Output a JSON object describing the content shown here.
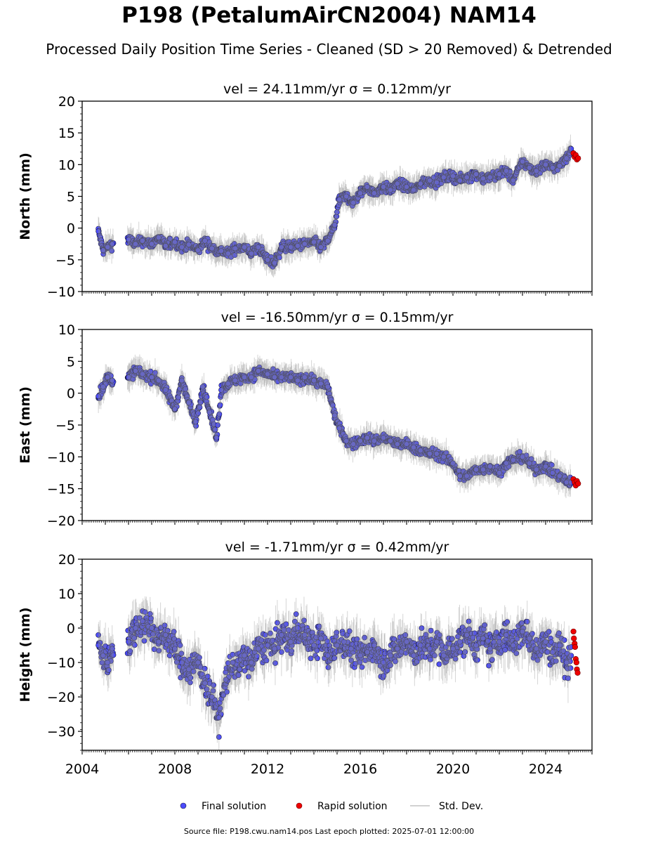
{
  "page": {
    "title": "P198 (PetalumAirCN2004) NAM14",
    "subtitle": "Processed Daily Position Time Series - Cleaned (SD > 20 Removed) & Detrended",
    "footer": "Source file: P198.cwu.nam14.pos  Last epoch plotted: 2025-07-01 12:00:00"
  },
  "colors": {
    "final": "#4b4bff",
    "rapid": "#ee0000",
    "stddev": "#888888",
    "edge": "#1a1a3a"
  },
  "legend": {
    "final_label": "Final solution",
    "rapid_label": "Rapid solution",
    "stddev_label": "Std. Dev."
  },
  "chart_data": [
    {
      "type": "scatter",
      "panel": "north",
      "title": "vel = 24.11mm/yr   σ = 0.12mm/yr",
      "ylabel": "North (mm)",
      "xlabel": "",
      "xlim": [
        2004.0,
        2026.0
      ],
      "ylim": [
        -10,
        20
      ],
      "yticks": [
        -10,
        -5,
        0,
        5,
        10,
        15,
        20
      ],
      "xticks": [],
      "grid": false,
      "series": [
        {
          "name": "Final solution",
          "x": [
            2004.7,
            2004.9,
            2005.1,
            2005.3,
            2006.0,
            2006.3,
            2006.6,
            2007.0,
            2007.3,
            2007.6,
            2008.0,
            2008.3,
            2008.6,
            2009.0,
            2009.3,
            2009.6,
            2010.0,
            2010.3,
            2010.6,
            2011.0,
            2011.3,
            2011.6,
            2012.0,
            2012.3,
            2012.6,
            2013.0,
            2013.3,
            2013.6,
            2014.0,
            2014.3,
            2014.6,
            2014.9,
            2015.1,
            2015.4,
            2015.7,
            2016.0,
            2016.3,
            2016.6,
            2017.0,
            2017.3,
            2017.6,
            2018.0,
            2018.3,
            2018.6,
            2019.0,
            2019.3,
            2019.6,
            2020.0,
            2020.3,
            2020.6,
            2021.0,
            2021.3,
            2021.6,
            2022.0,
            2022.3,
            2022.6,
            2023.0,
            2023.3,
            2023.6,
            2024.0,
            2024.3,
            2024.6,
            2024.9,
            2025.1
          ],
          "values": [
            -0.5,
            -3.5,
            -3.0,
            -2.5,
            -1.8,
            -2.5,
            -2.0,
            -2.5,
            -1.5,
            -2.8,
            -2.2,
            -3.0,
            -2.6,
            -3.5,
            -2.0,
            -3.2,
            -3.6,
            -4.0,
            -3.2,
            -3.0,
            -4.0,
            -3.0,
            -5.0,
            -5.5,
            -3.0,
            -3.0,
            -2.8,
            -2.5,
            -2.2,
            -3.0,
            -2.0,
            0.5,
            4.5,
            5.0,
            4.0,
            5.5,
            6.5,
            5.5,
            6.5,
            6.0,
            7.0,
            6.5,
            6.0,
            7.0,
            7.5,
            7.2,
            8.0,
            8.2,
            7.5,
            8.0,
            8.5,
            7.8,
            8.0,
            8.5,
            9.0,
            7.5,
            10.5,
            9.5,
            9.0,
            10.0,
            9.5,
            9.8,
            11.0,
            12.5
          ]
        },
        {
          "name": "Rapid solution",
          "x": [
            2025.2,
            2025.25,
            2025.3,
            2025.35,
            2025.4
          ],
          "values": [
            11.8,
            11.2,
            11.5,
            10.8,
            11.0
          ]
        }
      ]
    },
    {
      "type": "scatter",
      "panel": "east",
      "title": "vel = -16.50mm/yr   σ = 0.15mm/yr",
      "ylabel": "East (mm)",
      "xlabel": "",
      "xlim": [
        2004.0,
        2026.0
      ],
      "ylim": [
        -20,
        10
      ],
      "yticks": [
        -20,
        -15,
        -10,
        -5,
        0,
        5,
        10
      ],
      "xticks": [],
      "grid": false,
      "series": [
        {
          "name": "Final solution",
          "x": [
            2004.7,
            2004.9,
            2005.1,
            2005.3,
            2006.0,
            2006.3,
            2006.6,
            2007.0,
            2007.3,
            2007.6,
            2008.0,
            2008.3,
            2008.6,
            2008.9,
            2009.2,
            2009.5,
            2009.8,
            2010.0,
            2010.3,
            2010.6,
            2011.0,
            2011.3,
            2011.6,
            2012.0,
            2012.3,
            2012.6,
            2013.0,
            2013.3,
            2013.6,
            2014.0,
            2014.3,
            2014.6,
            2014.9,
            2015.1,
            2015.4,
            2015.7,
            2016.0,
            2016.3,
            2016.6,
            2017.0,
            2017.3,
            2017.6,
            2018.0,
            2018.3,
            2018.6,
            2019.0,
            2019.3,
            2019.6,
            2020.0,
            2020.3,
            2020.6,
            2021.0,
            2021.3,
            2021.6,
            2022.0,
            2022.3,
            2022.6,
            2023.0,
            2023.3,
            2023.6,
            2024.0,
            2024.3,
            2024.6,
            2024.9,
            2025.1
          ],
          "values": [
            -0.5,
            1.0,
            2.5,
            2.0,
            2.5,
            3.5,
            3.0,
            2.5,
            2.0,
            0.5,
            -2.5,
            2.0,
            -1.5,
            -4.5,
            1.0,
            -3.0,
            -7.0,
            0.5,
            1.5,
            2.0,
            2.5,
            2.5,
            3.5,
            3.0,
            2.5,
            2.5,
            2.5,
            2.0,
            2.5,
            2.0,
            1.5,
            1.0,
            -3.5,
            -5.5,
            -7.5,
            -8.0,
            -7.5,
            -7.0,
            -7.5,
            -7.0,
            -7.5,
            -8.0,
            -8.0,
            -8.5,
            -9.0,
            -9.5,
            -9.5,
            -10.0,
            -11.0,
            -13.0,
            -13.0,
            -12.0,
            -12.0,
            -11.5,
            -12.5,
            -11.0,
            -10.5,
            -10.0,
            -11.0,
            -12.0,
            -11.5,
            -12.5,
            -13.0,
            -14.0,
            -14.0
          ]
        },
        {
          "name": "Rapid solution",
          "x": [
            2025.2,
            2025.25,
            2025.3,
            2025.35,
            2025.4
          ],
          "values": [
            -13.5,
            -14.0,
            -14.5,
            -13.8,
            -14.2
          ]
        }
      ]
    },
    {
      "type": "scatter",
      "panel": "height",
      "title": "vel = -1.71mm/yr   σ = 0.42mm/yr",
      "ylabel": "Height (mm)",
      "xlabel": "",
      "xlim": [
        2004.0,
        2026.0
      ],
      "ylim": [
        -35.5,
        20
      ],
      "yticks": [
        -30,
        -20,
        -10,
        0,
        10,
        20
      ],
      "xticks": [
        2004,
        2008,
        2012,
        2016,
        2020,
        2024
      ],
      "grid": false,
      "series": [
        {
          "name": "Final solution",
          "x": [
            2004.7,
            2004.9,
            2005.1,
            2005.3,
            2006.0,
            2006.3,
            2006.6,
            2007.0,
            2007.3,
            2007.6,
            2008.0,
            2008.3,
            2008.6,
            2009.0,
            2009.3,
            2009.6,
            2009.9,
            2010.2,
            2010.5,
            2010.8,
            2011.0,
            2011.3,
            2011.6,
            2012.0,
            2012.3,
            2012.6,
            2013.0,
            2013.3,
            2013.6,
            2014.0,
            2014.3,
            2014.6,
            2015.0,
            2015.3,
            2015.6,
            2016.0,
            2016.3,
            2016.6,
            2017.0,
            2017.3,
            2017.6,
            2018.0,
            2018.3,
            2018.6,
            2019.0,
            2019.3,
            2019.6,
            2020.0,
            2020.3,
            2020.6,
            2021.0,
            2021.3,
            2021.6,
            2022.0,
            2022.3,
            2022.6,
            2023.0,
            2023.3,
            2023.6,
            2024.0,
            2024.3,
            2024.6,
            2024.9,
            2025.1
          ],
          "values": [
            -5.0,
            -8.0,
            -10.0,
            -6.0,
            -4.0,
            0.0,
            2.0,
            0.0,
            -4.0,
            -2.0,
            -6.0,
            -10.0,
            -12.0,
            -10.0,
            -16.0,
            -20.0,
            -26.0,
            -15.0,
            -10.0,
            -12.0,
            -8.0,
            -10.0,
            -6.0,
            -5.0,
            -6.0,
            -2.0,
            -4.0,
            0.0,
            -2.0,
            -5.0,
            -3.0,
            -8.0,
            -5.0,
            -4.0,
            -6.0,
            -8.0,
            -7.0,
            -5.0,
            -10.0,
            -8.0,
            -6.0,
            -4.0,
            -8.0,
            -5.0,
            -6.0,
            -4.0,
            -8.0,
            -6.0,
            -4.0,
            -2.0,
            -5.0,
            -3.0,
            -6.0,
            -4.0,
            -2.0,
            -5.0,
            -1.0,
            -3.0,
            -6.0,
            -4.0,
            -7.0,
            -5.0,
            -10.0,
            -8.0
          ]
        },
        {
          "name": "Rapid solution",
          "x": [
            2025.2,
            2025.22,
            2025.25,
            2025.27,
            2025.3,
            2025.33,
            2025.35,
            2025.38
          ],
          "values": [
            -1.0,
            -3.0,
            -4.5,
            -5.5,
            -9.0,
            -10.0,
            -12.0,
            -13.0
          ]
        }
      ]
    }
  ]
}
